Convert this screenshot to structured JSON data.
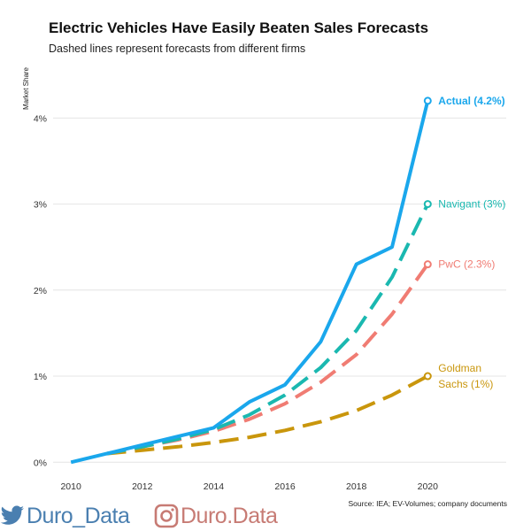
{
  "title": "Electric Vehicles Have Easily Beaten Sales Forecasts",
  "subtitle": "Dashed lines represent forecasts from different firms",
  "source": "Source: IEA; EV-Volumes; company documents",
  "watermarks": [
    {
      "name": "twitter",
      "icon": "twitter-bird-icon",
      "text": "Duro_Data",
      "color": "#4a7fb0"
    },
    {
      "name": "instagram",
      "icon": "instagram-icon",
      "text_a": "Duro",
      "text_b": ".Data",
      "color": "#c77b74"
    }
  ],
  "chart_data": {
    "type": "line",
    "title": "Electric Vehicles Have Easily Beaten Sales Forecasts",
    "subtitle": "Dashed lines represent forecasts from different firms",
    "xlabel": "",
    "ylabel": "Market Share",
    "xlim": [
      2009.5,
      2022.2
    ],
    "ylim": [
      -0.1,
      4.6
    ],
    "x_ticks": [
      2010,
      2012,
      2014,
      2016,
      2018,
      2020
    ],
    "y_ticks": [
      0,
      1,
      2,
      3,
      4
    ],
    "y_tick_labels": [
      "0%",
      "1%",
      "2%",
      "3%",
      "4%"
    ],
    "grid": true,
    "series": [
      {
        "name": "Goldman Sachs",
        "label_lines": [
          "Goldman",
          "Sachs (1%)"
        ],
        "color": "#c9960c",
        "style": "dashed",
        "x": [
          2011,
          2012,
          2013,
          2014,
          2015,
          2016,
          2017,
          2018,
          2019,
          2020
        ],
        "y": [
          0.1,
          0.14,
          0.18,
          0.23,
          0.29,
          0.37,
          0.47,
          0.6,
          0.78,
          1.0
        ]
      },
      {
        "name": "PwC",
        "label_lines": [
          "PwC (2.3%)"
        ],
        "color": "#f07c73",
        "style": "dashed",
        "x": [
          2011,
          2012,
          2013,
          2014,
          2015,
          2016,
          2017,
          2018,
          2019,
          2020
        ],
        "y": [
          0.1,
          0.18,
          0.26,
          0.36,
          0.5,
          0.68,
          0.93,
          1.25,
          1.72,
          2.3
        ]
      },
      {
        "name": "Navigant",
        "label_lines": [
          "Navigant (3%)"
        ],
        "color": "#1ab8b0",
        "style": "dashed",
        "x": [
          2011,
          2012,
          2013,
          2014,
          2015,
          2016,
          2017,
          2018,
          2019,
          2020
        ],
        "y": [
          0.1,
          0.18,
          0.27,
          0.38,
          0.55,
          0.78,
          1.1,
          1.53,
          2.15,
          3.0
        ]
      },
      {
        "name": "Actual",
        "label_lines": [
          "Actual (4.2%)"
        ],
        "color": "#1aa7ec",
        "style": "solid",
        "bold_label": true,
        "x": [
          2010,
          2011,
          2012,
          2013,
          2014,
          2015,
          2016,
          2017,
          2018,
          2019,
          2020
        ],
        "y": [
          0.0,
          0.1,
          0.2,
          0.3,
          0.4,
          0.7,
          0.9,
          1.4,
          2.3,
          2.5,
          4.2
        ]
      }
    ]
  }
}
